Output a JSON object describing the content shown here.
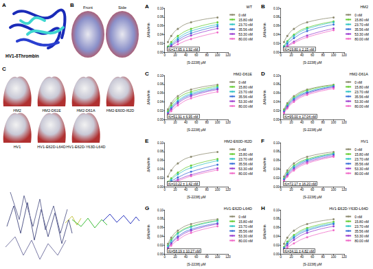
{
  "figure": {
    "panel_A": {
      "label": "A",
      "caption": "HV1-δThrombin"
    },
    "panel_B": {
      "label": "B",
      "views": [
        "Front",
        "Side"
      ]
    },
    "panel_C": {
      "label": "C",
      "variants": [
        "HM2",
        "HM2-D61E",
        "HM2-D61A",
        "HM2-E60D-I62D",
        "HV1",
        "HV1-E62D-L64D",
        "HV1-E62D-Y63D-L64D"
      ]
    }
  },
  "chart_data": [
    {
      "type": "line",
      "panel": "A",
      "title": "WT",
      "annotations": [
        "Ki=17.65 ± 1.92 nM"
      ],
      "x_label": "[S-2238] μM",
      "y_label": "ΔAbs/min",
      "x": [
        6.25,
        12.5,
        25,
        50,
        100
      ],
      "xlim": [
        0,
        120
      ],
      "xticks": [
        0,
        20,
        40,
        60,
        80,
        100,
        120
      ],
      "ylim": [
        0,
        0.1
      ],
      "yticks": [
        {
          "value": 0,
          "label": "0.00"
        },
        {
          "value": 0.02,
          "label": "0.02"
        },
        {
          "value": 0.04,
          "label": "0.04"
        },
        {
          "value": 0.06,
          "label": "0.06"
        },
        {
          "value": 0.08,
          "label": "0.08"
        },
        {
          "value": 0.1,
          "label": "0.10"
        }
      ],
      "legend": "upper right",
      "marker": "circle",
      "series": [
        {
          "name": "0 nM",
          "color": "#8c8a6e",
          "values": [
            0.023,
            0.037,
            0.053,
            0.068,
            0.079
          ]
        },
        {
          "name": "15.80 nM",
          "color": "#66cc33",
          "values": [
            0.013,
            0.023,
            0.037,
            0.053,
            0.068
          ]
        },
        {
          "name": "23.70 nM",
          "color": "#33c4c4",
          "values": [
            0.011,
            0.019,
            0.032,
            0.048,
            0.063
          ]
        },
        {
          "name": "35.56 nM",
          "color": "#3a6fd8",
          "values": [
            0.009,
            0.016,
            0.028,
            0.043,
            0.059
          ]
        },
        {
          "name": "53.30 nM",
          "color": "#9b3fd0",
          "values": [
            0.007,
            0.014,
            0.024,
            0.038,
            0.054
          ]
        },
        {
          "name": "80.00 nM",
          "color": "#f06ac8",
          "values": [
            0.005,
            0.01,
            0.018,
            0.03,
            0.045
          ]
        }
      ]
    },
    {
      "type": "line",
      "panel": "B",
      "title": "HM2",
      "annotations": [
        "Ki=19.80 ± 2.15 nM"
      ],
      "x_label": "[S-2238] μM",
      "y_label": "ΔAbs/min",
      "x": [
        6.25,
        12.5,
        25,
        50,
        100
      ],
      "xlim": [
        0,
        120
      ],
      "xticks": [
        0,
        20,
        40,
        60,
        80,
        100,
        120
      ],
      "ylim": [
        0,
        0.1
      ],
      "yticks": [
        {
          "value": 0,
          "label": "0.00"
        },
        {
          "value": 0.02,
          "label": "0.02"
        },
        {
          "value": 0.04,
          "label": "0.04"
        },
        {
          "value": 0.06,
          "label": "0.06"
        },
        {
          "value": 0.08,
          "label": "0.08"
        },
        {
          "value": 0.1,
          "label": "0.10"
        }
      ],
      "legend": "upper right",
      "marker": "circle",
      "series": [
        {
          "name": "0 nM",
          "color": "#8c8a6e",
          "values": [
            0.023,
            0.037,
            0.053,
            0.068,
            0.079
          ]
        },
        {
          "name": "15.80 nM",
          "color": "#66cc33",
          "values": [
            0.014,
            0.025,
            0.04,
            0.056,
            0.07
          ]
        },
        {
          "name": "23.70 nM",
          "color": "#33c4c4",
          "values": [
            0.013,
            0.023,
            0.037,
            0.053,
            0.068
          ]
        },
        {
          "name": "35.56 nM",
          "color": "#3a6fd8",
          "values": [
            0.011,
            0.019,
            0.032,
            0.048,
            0.063
          ]
        },
        {
          "name": "53.30 nM",
          "color": "#9b3fd0",
          "values": [
            0.007,
            0.014,
            0.024,
            0.038,
            0.054
          ]
        },
        {
          "name": "80.00 nM",
          "color": "#f06ac8",
          "values": [
            0.006,
            0.012,
            0.021,
            0.034,
            0.05
          ]
        }
      ]
    },
    {
      "type": "line",
      "panel": "C",
      "title": "HM2-D61E",
      "annotations": [
        "Ki=51.91 ± 6.95 nM"
      ],
      "x_label": "[S-2238] μM",
      "y_label": "ΔAbs/min",
      "x": [
        6.25,
        12.5,
        25,
        50,
        100
      ],
      "xlim": [
        0,
        120
      ],
      "xticks": [
        0,
        20,
        40,
        60,
        80,
        100,
        120
      ],
      "ylim": [
        0,
        0.1
      ],
      "yticks": [
        {
          "value": 0,
          "label": "0.00"
        },
        {
          "value": 0.02,
          "label": "0.02"
        },
        {
          "value": 0.04,
          "label": "0.04"
        },
        {
          "value": 0.06,
          "label": "0.06"
        },
        {
          "value": 0.08,
          "label": "0.08"
        },
        {
          "value": 0.1,
          "label": "0.10"
        }
      ],
      "legend": "upper right",
      "marker": "circle",
      "series": [
        {
          "name": "0 nM",
          "color": "#8c8a6e",
          "values": [
            0.023,
            0.037,
            0.053,
            0.068,
            0.079
          ]
        },
        {
          "name": "15.80 nM",
          "color": "#66cc33",
          "values": [
            0.019,
            0.032,
            0.048,
            0.063,
            0.076
          ]
        },
        {
          "name": "23.70 nM",
          "color": "#33c4c4",
          "values": [
            0.016,
            0.028,
            0.043,
            0.059,
            0.073
          ]
        },
        {
          "name": "35.56 nM",
          "color": "#3a6fd8",
          "values": [
            0.014,
            0.025,
            0.04,
            0.056,
            0.07
          ]
        },
        {
          "name": "53.30 nM",
          "color": "#9b3fd0",
          "values": [
            0.013,
            0.023,
            0.037,
            0.053,
            0.068
          ]
        },
        {
          "name": "80.00 nM",
          "color": "#f06ac8",
          "values": [
            0.011,
            0.019,
            0.032,
            0.048,
            0.063
          ]
        }
      ]
    },
    {
      "type": "line",
      "panel": "D",
      "title": "HM2-D61A",
      "annotations": [
        "Ki=95.00 ± 17.04 nM"
      ],
      "x_label": "[S-2238] μM",
      "y_label": "ΔAbs/min",
      "x": [
        6.25,
        12.5,
        25,
        50,
        100
      ],
      "xlim": [
        0,
        120
      ],
      "xticks": [
        0,
        20,
        40,
        60,
        80,
        100,
        120
      ],
      "ylim": [
        0,
        0.1
      ],
      "yticks": [
        {
          "value": 0,
          "label": "0.00"
        },
        {
          "value": 0.02,
          "label": "0.02"
        },
        {
          "value": 0.04,
          "label": "0.04"
        },
        {
          "value": 0.06,
          "label": "0.06"
        },
        {
          "value": 0.08,
          "label": "0.08"
        },
        {
          "value": 0.1,
          "label": "0.10"
        }
      ],
      "legend": "upper right",
      "marker": "circle",
      "series": [
        {
          "name": "0 nM",
          "color": "#8c8a6e",
          "values": [
            0.023,
            0.037,
            0.053,
            0.068,
            0.079
          ]
        },
        {
          "name": "15.80 nM",
          "color": "#66cc33",
          "values": [
            0.021,
            0.034,
            0.05,
            0.066,
            0.078
          ]
        },
        {
          "name": "23.70 nM",
          "color": "#33c4c4",
          "values": [
            0.019,
            0.032,
            0.048,
            0.063,
            0.076
          ]
        },
        {
          "name": "35.56 nM",
          "color": "#3a6fd8",
          "values": [
            0.018,
            0.03,
            0.046,
            0.061,
            0.075
          ]
        },
        {
          "name": "53.30 nM",
          "color": "#9b3fd0",
          "values": [
            0.016,
            0.028,
            0.043,
            0.059,
            0.073
          ]
        },
        {
          "name": "80.00 nM",
          "color": "#f06ac8",
          "values": [
            0.014,
            0.025,
            0.04,
            0.056,
            0.07
          ]
        }
      ]
    },
    {
      "type": "line",
      "panel": "E",
      "title": "HM2-E60D-I62D",
      "annotations": [
        "Ki=10.22 ± 1.42 nM"
      ],
      "x_label": "[S-2238] μM",
      "y_label": "ΔAbs/min",
      "x": [
        6.25,
        12.5,
        25,
        50,
        100
      ],
      "xlim": [
        0,
        120
      ],
      "xticks": [
        0,
        20,
        40,
        60,
        80,
        100,
        120
      ],
      "ylim": [
        0,
        0.1
      ],
      "yticks": [
        {
          "value": 0,
          "label": "0.00"
        },
        {
          "value": 0.02,
          "label": "0.02"
        },
        {
          "value": 0.04,
          "label": "0.04"
        },
        {
          "value": 0.06,
          "label": "0.06"
        },
        {
          "value": 0.08,
          "label": "0.08"
        },
        {
          "value": 0.1,
          "label": "0.10"
        }
      ],
      "legend": "upper right",
      "marker": "circle",
      "series": [
        {
          "name": "0 nM",
          "color": "#8c8a6e",
          "values": [
            0.023,
            0.037,
            0.053,
            0.068,
            0.079
          ]
        },
        {
          "name": "15.80 nM",
          "color": "#66cc33",
          "values": [
            0.011,
            0.019,
            0.032,
            0.048,
            0.063
          ]
        },
        {
          "name": "23.70 nM",
          "color": "#33c4c4",
          "values": [
            0.009,
            0.016,
            0.028,
            0.043,
            0.059
          ]
        },
        {
          "name": "35.56 nM",
          "color": "#3a6fd8",
          "values": [
            0.006,
            0.012,
            0.021,
            0.034,
            0.05
          ]
        },
        {
          "name": "53.30 nM",
          "color": "#9b3fd0",
          "values": [
            0.004,
            0.009,
            0.016,
            0.027,
            0.042
          ]
        },
        {
          "name": "80.00 nM",
          "color": "#f06ac8",
          "values": [
            0.004,
            0.007,
            0.013,
            0.024,
            0.038
          ]
        }
      ]
    },
    {
      "type": "line",
      "panel": "F",
      "title": "HV1",
      "annotations": [
        "Ki=72.17 ± 16.20 nM"
      ],
      "x_label": "[S-2238] μM",
      "y_label": "ΔAbs/min",
      "x": [
        6.25,
        12.5,
        25,
        50,
        100
      ],
      "xlim": [
        0,
        120
      ],
      "xticks": [
        0,
        20,
        40,
        60,
        80,
        100,
        120
      ],
      "ylim": [
        0,
        0.1
      ],
      "yticks": [
        {
          "value": 0,
          "label": "0.00"
        },
        {
          "value": 0.02,
          "label": "0.02"
        },
        {
          "value": 0.04,
          "label": "0.04"
        },
        {
          "value": 0.06,
          "label": "0.06"
        },
        {
          "value": 0.08,
          "label": "0.08"
        },
        {
          "value": 0.1,
          "label": "0.10"
        }
      ],
      "legend": "upper right",
      "marker": "circle",
      "series": [
        {
          "name": "0 nM",
          "color": "#8c8a6e",
          "values": [
            0.023,
            0.037,
            0.053,
            0.068,
            0.079
          ]
        },
        {
          "name": "15.80 nM",
          "color": "#66cc33",
          "values": [
            0.019,
            0.032,
            0.048,
            0.063,
            0.076
          ]
        },
        {
          "name": "23.70 nM",
          "color": "#33c4c4",
          "values": [
            0.018,
            0.03,
            0.046,
            0.061,
            0.075
          ]
        },
        {
          "name": "35.56 nM",
          "color": "#3a6fd8",
          "values": [
            0.016,
            0.028,
            0.043,
            0.059,
            0.073
          ]
        },
        {
          "name": "53.30 nM",
          "color": "#9b3fd0",
          "values": [
            0.014,
            0.025,
            0.04,
            0.056,
            0.07
          ]
        },
        {
          "name": "80.00 nM",
          "color": "#f06ac8",
          "values": [
            0.013,
            0.023,
            0.037,
            0.053,
            0.068
          ]
        }
      ]
    },
    {
      "type": "line",
      "panel": "G",
      "title": "HV1-E62D-L64D",
      "annotations": [
        "Ki=58.19 ± 10.27 nM"
      ],
      "x_label": "[S-2238] μM",
      "y_label": "ΔAbs/min",
      "x": [
        6.25,
        12.5,
        25,
        50,
        100
      ],
      "xlim": [
        0,
        120
      ],
      "xticks": [
        0,
        20,
        40,
        60,
        80,
        100,
        120
      ],
      "ylim": [
        0,
        0.1
      ],
      "yticks": [
        {
          "value": 0,
          "label": "0.00"
        },
        {
          "value": 0.02,
          "label": "0.02"
        },
        {
          "value": 0.04,
          "label": "0.04"
        },
        {
          "value": 0.06,
          "label": "0.06"
        },
        {
          "value": 0.08,
          "label": "0.08"
        },
        {
          "value": 0.1,
          "label": "0.10"
        }
      ],
      "legend": "upper right",
      "marker": "circle",
      "series": [
        {
          "name": "0 nM",
          "color": "#8c8a6e",
          "values": [
            0.023,
            0.037,
            0.053,
            0.068,
            0.079
          ]
        },
        {
          "name": "15.80 nM",
          "color": "#66cc33",
          "values": [
            0.019,
            0.032,
            0.048,
            0.063,
            0.076
          ]
        },
        {
          "name": "23.70 nM",
          "color": "#33c4c4",
          "values": [
            0.018,
            0.03,
            0.046,
            0.061,
            0.075
          ]
        },
        {
          "name": "35.56 nM",
          "color": "#3a6fd8",
          "values": [
            0.014,
            0.025,
            0.04,
            0.056,
            0.07
          ]
        },
        {
          "name": "53.30 nM",
          "color": "#9b3fd0",
          "values": [
            0.013,
            0.023,
            0.037,
            0.053,
            0.068
          ]
        },
        {
          "name": "80.00 nM",
          "color": "#f06ac8",
          "values": [
            0.011,
            0.019,
            0.032,
            0.048,
            0.063
          ]
        }
      ]
    },
    {
      "type": "line",
      "panel": "H",
      "title": "HV1-E62D-Y63D-L64D",
      "annotations": [
        "Ki=34.11 ± 4.82 nM"
      ],
      "x_label": "[S-2238] μM",
      "y_label": "ΔAbs/min",
      "x": [
        6.25,
        12.5,
        25,
        50,
        100
      ],
      "xlim": [
        0,
        120
      ],
      "xticks": [
        0,
        20,
        40,
        60,
        80,
        100,
        120
      ],
      "ylim": [
        0,
        0.1
      ],
      "yticks": [
        {
          "value": 0,
          "label": "0.00"
        },
        {
          "value": 0.02,
          "label": "0.02"
        },
        {
          "value": 0.04,
          "label": "0.04"
        },
        {
          "value": 0.06,
          "label": "0.06"
        },
        {
          "value": 0.08,
          "label": "0.08"
        },
        {
          "value": 0.1,
          "label": "0.10"
        }
      ],
      "legend": "upper right",
      "marker": "circle",
      "series": [
        {
          "name": "0 nM",
          "color": "#8c8a6e",
          "values": [
            0.023,
            0.037,
            0.053,
            0.068,
            0.079
          ]
        },
        {
          "name": "15.80 nM",
          "color": "#66cc33",
          "values": [
            0.016,
            0.028,
            0.043,
            0.059,
            0.073
          ]
        },
        {
          "name": "23.70 nM",
          "color": "#33c4c4",
          "values": [
            0.014,
            0.025,
            0.04,
            0.056,
            0.07
          ]
        },
        {
          "name": "35.56 nM",
          "color": "#3a6fd8",
          "values": [
            0.013,
            0.023,
            0.037,
            0.053,
            0.068
          ]
        },
        {
          "name": "53.30 nM",
          "color": "#9b3fd0",
          "values": [
            0.011,
            0.019,
            0.032,
            0.048,
            0.063
          ]
        },
        {
          "name": "80.00 nM",
          "color": "#f06ac8",
          "values": [
            0.007,
            0.014,
            0.024,
            0.038,
            0.054
          ]
        }
      ]
    }
  ]
}
